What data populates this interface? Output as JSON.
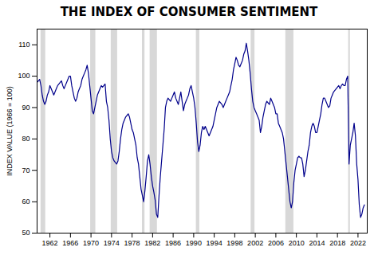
{
  "chart_data": {
    "type": "line",
    "title": "THE INDEX OF CONSUMER SENTIMENT",
    "ylabel": "INDEX VALUE (1966 = 100)",
    "xlim": [
      1959.5,
      2023.8
    ],
    "ylim": [
      50,
      115
    ],
    "xticks": [
      1962,
      1966,
      1970,
      1974,
      1978,
      1982,
      1986,
      1990,
      1994,
      1998,
      2002,
      2006,
      2010,
      2014,
      2018,
      2022
    ],
    "yticks": [
      50,
      60,
      70,
      80,
      90,
      100,
      110
    ],
    "grid": false,
    "color": "#00008B",
    "recessions": {
      "color": "#D8D8D8",
      "ranges": [
        [
          1960.25,
          1961.17
        ],
        [
          1969.92,
          1970.92
        ],
        [
          1973.92,
          1975.17
        ],
        [
          1980.0,
          1980.5
        ],
        [
          1981.5,
          1982.92
        ],
        [
          1990.5,
          1991.17
        ],
        [
          2001.17,
          2001.92
        ],
        [
          2007.92,
          2009.5
        ],
        [
          2020.17,
          2020.5
        ]
      ]
    },
    "x": [
      1959.5,
      1960,
      1960.25,
      1960.5,
      1960.75,
      1961,
      1961.25,
      1961.5,
      1961.75,
      1962,
      1962.25,
      1962.5,
      1962.75,
      1963,
      1963.25,
      1963.5,
      1963.75,
      1964,
      1964.25,
      1964.5,
      1964.75,
      1965,
      1965.25,
      1965.5,
      1965.75,
      1966,
      1966.25,
      1966.5,
      1966.75,
      1967,
      1967.25,
      1967.5,
      1967.75,
      1968,
      1968.25,
      1968.5,
      1968.75,
      1969,
      1969.25,
      1969.5,
      1969.75,
      1970,
      1970.25,
      1970.5,
      1970.75,
      1971,
      1971.25,
      1971.5,
      1971.75,
      1972,
      1972.25,
      1972.5,
      1972.75,
      1973,
      1973.25,
      1973.5,
      1973.75,
      1974,
      1974.25,
      1974.5,
      1974.75,
      1975,
      1975.25,
      1975.5,
      1975.75,
      1976,
      1976.25,
      1976.5,
      1976.75,
      1977,
      1977.25,
      1977.5,
      1977.75,
      1978,
      1978.25,
      1978.5,
      1978.75,
      1979,
      1979.25,
      1979.5,
      1979.75,
      1980,
      1980.25,
      1980.5,
      1980.75,
      1981,
      1981.25,
      1981.5,
      1981.75,
      1982,
      1982.25,
      1982.5,
      1982.75,
      1983,
      1983.25,
      1983.5,
      1983.75,
      1984,
      1984.25,
      1984.5,
      1984.75,
      1985,
      1985.25,
      1985.5,
      1985.75,
      1986,
      1986.25,
      1986.5,
      1986.75,
      1987,
      1987.25,
      1987.5,
      1987.75,
      1988,
      1988.25,
      1988.5,
      1988.75,
      1989,
      1989.25,
      1989.5,
      1989.75,
      1990,
      1990.25,
      1990.5,
      1990.75,
      1991,
      1991.25,
      1991.5,
      1991.75,
      1992,
      1992.25,
      1992.5,
      1992.75,
      1993,
      1993.25,
      1993.5,
      1993.75,
      1994,
      1994.25,
      1994.5,
      1994.75,
      1995,
      1995.25,
      1995.5,
      1995.75,
      1996,
      1996.25,
      1996.5,
      1996.75,
      1997,
      1997.25,
      1997.5,
      1997.75,
      1998,
      1998.25,
      1998.5,
      1998.75,
      1999,
      1999.25,
      1999.5,
      1999.75,
      2000,
      2000.25,
      2000.5,
      2000.75,
      2001,
      2001.25,
      2001.5,
      2001.75,
      2002,
      2002.25,
      2002.5,
      2002.75,
      2003,
      2003.25,
      2003.5,
      2003.75,
      2004,
      2004.25,
      2004.5,
      2004.75,
      2005,
      2005.25,
      2005.5,
      2005.75,
      2006,
      2006.25,
      2006.5,
      2006.75,
      2007,
      2007.25,
      2007.5,
      2007.75,
      2008,
      2008.25,
      2008.5,
      2008.75,
      2009,
      2009.25,
      2009.5,
      2009.75,
      2010,
      2010.25,
      2010.5,
      2010.75,
      2011,
      2011.25,
      2011.5,
      2011.75,
      2012,
      2012.25,
      2012.5,
      2012.75,
      2013,
      2013.25,
      2013.5,
      2013.75,
      2014,
      2014.25,
      2014.5,
      2014.75,
      2015,
      2015.25,
      2015.5,
      2015.75,
      2016,
      2016.25,
      2016.5,
      2016.75,
      2017,
      2017.25,
      2017.5,
      2017.75,
      2018,
      2018.25,
      2018.5,
      2018.75,
      2019,
      2019.25,
      2019.5,
      2019.75,
      2020,
      2020.25,
      2020.5,
      2020.75,
      2021,
      2021.25,
      2021.5,
      2021.75,
      2022,
      2022.25,
      2022.5,
      2022.75,
      2023,
      2023.25
    ],
    "values": [
      98.0,
      99.0,
      97.0,
      94.0,
      92.0,
      91.0,
      92.0,
      94.0,
      95.0,
      97.0,
      96.0,
      95.0,
      94.0,
      95.0,
      96.0,
      97.0,
      97.5,
      98.0,
      98.5,
      97.0,
      96.0,
      97.0,
      98.0,
      99.0,
      100.0,
      100.0,
      97.0,
      95.0,
      93.0,
      92.0,
      93.0,
      95.0,
      96.0,
      97.0,
      99.0,
      100.0,
      101.0,
      102.0,
      103.5,
      101.0,
      97.0,
      93.0,
      89.0,
      88.0,
      90.0,
      92.0,
      94.0,
      95.0,
      96.0,
      97.0,
      96.5,
      97.0,
      97.5,
      92.0,
      90.0,
      86.0,
      80.0,
      76.0,
      74.0,
      73.0,
      72.5,
      72.0,
      73.0,
      76.0,
      80.0,
      83.0,
      85.0,
      86.0,
      87.0,
      87.5,
      88.0,
      87.0,
      85.0,
      83.0,
      82.0,
      80.0,
      78.0,
      74.0,
      72.0,
      68.0,
      64.0,
      62.0,
      60.0,
      63.5,
      68.0,
      73.0,
      75.0,
      72.0,
      68.0,
      65.0,
      63.0,
      60.5,
      56.0,
      55.0,
      62.0,
      68.0,
      73.0,
      78.0,
      83.0,
      90.0,
      92.0,
      93.0,
      92.5,
      92.0,
      93.0,
      94.0,
      95.0,
      93.0,
      92.0,
      91.0,
      93.0,
      95.0,
      92.0,
      89.0,
      91.0,
      92.0,
      93.0,
      94.0,
      96.0,
      97.0,
      95.0,
      93.0,
      90.0,
      85.0,
      79.0,
      76.0,
      78.0,
      82.0,
      84.0,
      83.0,
      84.0,
      83.0,
      82.0,
      81.0,
      82.0,
      83.0,
      84.0,
      86.0,
      88.0,
      90.0,
      91.0,
      92.0,
      91.5,
      91.0,
      90.0,
      91.0,
      92.0,
      93.0,
      94.0,
      95.0,
      97.0,
      99.0,
      102.0,
      104.0,
      106.0,
      105.0,
      103.5,
      103.0,
      104.0,
      105.0,
      107.0,
      108.0,
      110.5,
      108.0,
      105.0,
      101.0,
      96.0,
      92.0,
      90.0,
      89.0,
      88.0,
      87.0,
      86.0,
      82.0,
      84.0,
      87.0,
      89.0,
      91.0,
      92.0,
      91.5,
      91.0,
      93.0,
      92.0,
      91.0,
      90.0,
      88.0,
      88.0,
      85.0,
      84.0,
      83.0,
      82.0,
      80.0,
      76.0,
      72.0,
      68.0,
      64.0,
      60.0,
      58.0,
      60.0,
      66.0,
      70.0,
      72.0,
      74.0,
      74.5,
      74.0,
      74.0,
      72.0,
      68.0,
      70.0,
      73.0,
      76.0,
      78.0,
      82.0,
      84.0,
      85.0,
      84.0,
      82.0,
      82.0,
      84.0,
      86.0,
      88.0,
      91.0,
      93.0,
      93.0,
      92.0,
      91.0,
      90.0,
      90.5,
      93.0,
      94.0,
      95.0,
      95.5,
      96.0,
      96.5,
      97.0,
      96.0,
      97.0,
      97.5,
      97.0,
      97.0,
      99.0,
      100.0,
      72.0,
      78.0,
      80.0,
      82.0,
      85.0,
      81.0,
      72.0,
      67.0,
      59.0,
      55.0,
      56.0,
      58.0,
      59.0
    ]
  }
}
